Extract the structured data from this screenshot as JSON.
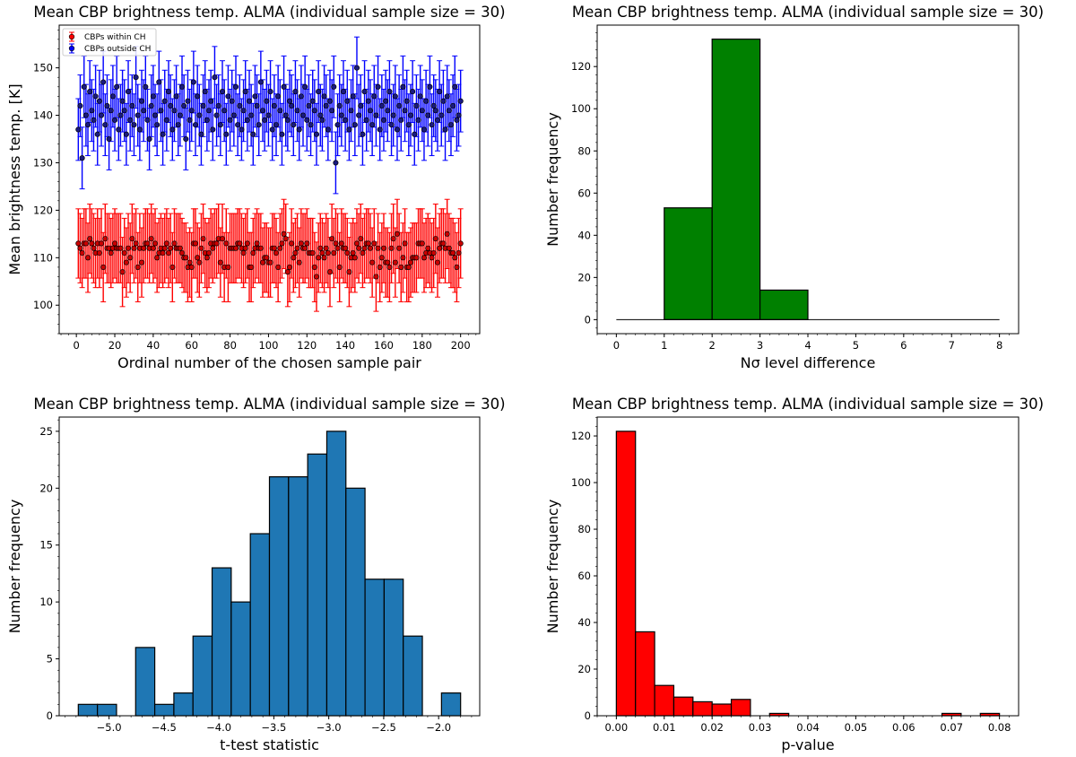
{
  "chart_data": [
    {
      "type": "scatter",
      "title": "Mean CBP brightness temp. ALMA (individual sample size = 30)",
      "xlabel": "Ordinal number of the chosen sample pair",
      "ylabel": "Mean brightness temp. [K]",
      "xlim": [
        -8.95,
        209.95
      ],
      "ylim": [
        94,
        159
      ],
      "xticks": [
        0,
        20,
        40,
        60,
        80,
        100,
        120,
        140,
        160,
        180,
        200
      ],
      "xtick_labels": [
        "0",
        "20",
        "40",
        "60",
        "80",
        "100",
        "120",
        "140",
        "160",
        "180",
        "200"
      ],
      "yticks": [
        100,
        110,
        120,
        130,
        140,
        150
      ],
      "ytick_labels": [
        "100",
        "110",
        "120",
        "130",
        "140",
        "150"
      ],
      "legend": {
        "placement": "top-left",
        "entries": [
          "CBPs within CH",
          "CBPs outside CH"
        ]
      },
      "x_start": 1,
      "series": [
        {
          "name": "CBPs within CH",
          "color": "#ff0000",
          "yerr": 7.3,
          "values": [
            113,
            112,
            111,
            113,
            113,
            110,
            114,
            113,
            112,
            111,
            113,
            111,
            113,
            108,
            114,
            112,
            112,
            111,
            112,
            113,
            112,
            112,
            112,
            107,
            111,
            109,
            112,
            110,
            114,
            112,
            113,
            108,
            112,
            109,
            112,
            113,
            113,
            112,
            114,
            112,
            113,
            110,
            111,
            112,
            111,
            112,
            113,
            111,
            112,
            108,
            113,
            112,
            112,
            112,
            111,
            110,
            110,
            108,
            109,
            108,
            113,
            113,
            110,
            109,
            112,
            114,
            111,
            110,
            111,
            113,
            112,
            113,
            113,
            114,
            109,
            114,
            108,
            113,
            108,
            112,
            112,
            112,
            112,
            113,
            113,
            112,
            111,
            112,
            113,
            108,
            108,
            111,
            112,
            113,
            112,
            112,
            109,
            110,
            110,
            109,
            109,
            112,
            112,
            111,
            108,
            112,
            113,
            115,
            114,
            107,
            108,
            113,
            110,
            111,
            112,
            109,
            113,
            112,
            112,
            113,
            111,
            111,
            111,
            108,
            106,
            110,
            112,
            111,
            110,
            112,
            111,
            107,
            114,
            111,
            113,
            112,
            108,
            113,
            112,
            112,
            111,
            107,
            110,
            111,
            110,
            113,
            112,
            114,
            111,
            112,
            113,
            113,
            112,
            109,
            113,
            106,
            112,
            108,
            110,
            112,
            109,
            109,
            108,
            112,
            114,
            109,
            115,
            112,
            108,
            110,
            113,
            108,
            108,
            109,
            110,
            110,
            110,
            113,
            113,
            113,
            110,
            111,
            112,
            111,
            110,
            111,
            114,
            109,
            112,
            113,
            113,
            112,
            115,
            112,
            111,
            111,
            110,
            108,
            111,
            113
          ]
        },
        {
          "name": "CBPs outside CH",
          "color": "#0000ff",
          "yerr": 6.5,
          "values": [
            137,
            142,
            131,
            146,
            140,
            138,
            145,
            141,
            139,
            144,
            136,
            143,
            140,
            147,
            138,
            142,
            135,
            141,
            144,
            139,
            146,
            137,
            140,
            143,
            141,
            136,
            145,
            139,
            142,
            138,
            148,
            140,
            137,
            143,
            141,
            146,
            139,
            135,
            142,
            144,
            140,
            138,
            147,
            141,
            136,
            143,
            139,
            145,
            142,
            137,
            141,
            144,
            138,
            140,
            146,
            142,
            135,
            143,
            139,
            141,
            147,
            138,
            144,
            140,
            136,
            142,
            145,
            139,
            141,
            143,
            137,
            148,
            140,
            142,
            138,
            145,
            141,
            136,
            144,
            139,
            143,
            140,
            146,
            138,
            142,
            137,
            141,
            145,
            139,
            143,
            140,
            136,
            144,
            142,
            138,
            147,
            141,
            139,
            143,
            140,
            145,
            137,
            142,
            138,
            144,
            141,
            136,
            146,
            140,
            139,
            143,
            142,
            138,
            145,
            141,
            137,
            144,
            140,
            146,
            139,
            142,
            138,
            143,
            141,
            136,
            145,
            140,
            139,
            144,
            142,
            137,
            143,
            141,
            146,
            130,
            138,
            142,
            140,
            145,
            139,
            143,
            137,
            141,
            144,
            138,
            150,
            140,
            142,
            136,
            145,
            139,
            143,
            141,
            138,
            144,
            140,
            146,
            137,
            142,
            139,
            143,
            141,
            145,
            138,
            140,
            144,
            137,
            142,
            139,
            146,
            141,
            143,
            138,
            140,
            145,
            136,
            142,
            139,
            144,
            141,
            137,
            143,
            140,
            146,
            138,
            142,
            141,
            139,
            145,
            140,
            143,
            137,
            144,
            141,
            138,
            142,
            146,
            139,
            140,
            143
          ]
        }
      ]
    },
    {
      "type": "bar",
      "title": "Mean CBP brightness temp. ALMA (individual sample size = 30)",
      "xlabel": "Nσ level difference",
      "ylabel": "Number frequency",
      "color": "#008000",
      "bin_edges": [
        0,
        1,
        2,
        3,
        4,
        5,
        6,
        7,
        8
      ],
      "values": [
        0,
        53,
        133,
        14,
        0,
        0,
        0,
        0
      ],
      "xlim": [
        -0.4,
        8.4
      ],
      "ylim": [
        -6.65,
        139.65
      ],
      "xticks": [
        0,
        1,
        2,
        3,
        4,
        5,
        6,
        7,
        8
      ],
      "xtick_labels": [
        "0",
        "1",
        "2",
        "3",
        "4",
        "5",
        "6",
        "7",
        "8"
      ],
      "yticks": [
        0,
        20,
        40,
        60,
        80,
        100,
        120
      ],
      "ytick_labels": [
        "0",
        "20",
        "40",
        "60",
        "80",
        "100",
        "120"
      ]
    },
    {
      "type": "bar",
      "title": "Mean CBP brightness temp. ALMA (individual sample size = 30)",
      "xlabel": "t-test statistic",
      "ylabel": "Number frequency",
      "color": "#1f77b4",
      "bin_edges": [
        -5.28,
        -5.106,
        -4.932,
        -4.758,
        -4.584,
        -4.41,
        -4.236,
        -4.062,
        -3.888,
        -3.714,
        -3.54,
        -3.366,
        -3.192,
        -3.018,
        -2.844,
        -2.67,
        -2.496,
        -2.322,
        -2.148,
        -1.974,
        -1.8
      ],
      "values": [
        1,
        1,
        0,
        6,
        1,
        2,
        7,
        13,
        10,
        16,
        21,
        21,
        23,
        25,
        20,
        12,
        12,
        7,
        0,
        2
      ],
      "xlim": [
        -5.454,
        -1.626
      ],
      "ylim": [
        0,
        26.25
      ],
      "xticks": [
        -5.0,
        -4.5,
        -4.0,
        -3.5,
        -3.0,
        -2.5,
        -2.0
      ],
      "xtick_labels": [
        "−5.0",
        "−4.5",
        "−4.0",
        "−3.5",
        "−3.0",
        "−2.5",
        "−2.0"
      ],
      "yticks": [
        0,
        5,
        10,
        15,
        20,
        25
      ],
      "ytick_labels": [
        "0",
        "5",
        "10",
        "15",
        "20",
        "25"
      ]
    },
    {
      "type": "bar",
      "title": "Mean CBP brightness temp. ALMA (individual sample size = 30)",
      "xlabel": "p-value",
      "ylabel": "Number frequency",
      "color": "#ff0000",
      "bin_edges": [
        0,
        0.004,
        0.008,
        0.012,
        0.016,
        0.02,
        0.024,
        0.028,
        0.032,
        0.036,
        0.04,
        0.044,
        0.048,
        0.052,
        0.056,
        0.06,
        0.064,
        0.068,
        0.072,
        0.076,
        0.08
      ],
      "values": [
        122,
        36,
        13,
        8,
        6,
        5,
        7,
        0,
        1,
        0,
        0,
        0,
        0,
        0,
        0,
        0,
        0,
        1,
        0,
        1
      ],
      "xlim": [
        -0.004,
        0.084
      ],
      "ylim": [
        0,
        128.1
      ],
      "xticks": [
        0,
        0.01,
        0.02,
        0.03,
        0.04,
        0.05,
        0.06,
        0.07,
        0.08
      ],
      "xtick_labels": [
        "0.00",
        "0.01",
        "0.02",
        "0.03",
        "0.04",
        "0.05",
        "0.06",
        "0.07",
        "0.08"
      ],
      "yticks": [
        0,
        20,
        40,
        60,
        80,
        100,
        120
      ],
      "ytick_labels": [
        "0",
        "20",
        "40",
        "60",
        "80",
        "100",
        "120"
      ]
    }
  ]
}
